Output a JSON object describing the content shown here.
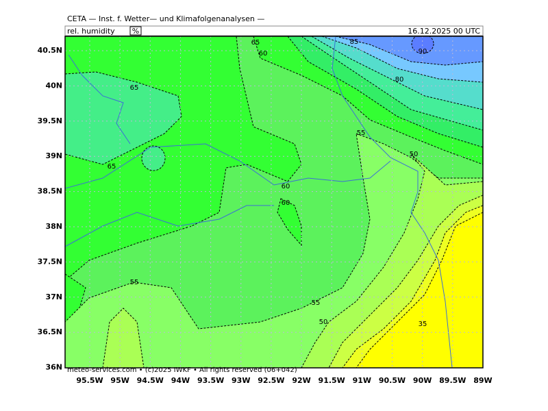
{
  "header": {
    "title": "CETA — Inst. f. Wetter— und Klimafolgenanalysen —",
    "variable": "rel. humidity",
    "unit": "%",
    "date": "16.12.2025 00 UTC"
  },
  "map": {
    "lat_labels": [
      "40.5N",
      "40N",
      "39.5N",
      "39N",
      "38.5N",
      "38N",
      "37.5N",
      "37N",
      "36.5N",
      "36N"
    ],
    "lon_labels": [
      "95.5W",
      "95W",
      "94.5W",
      "94W",
      "93.5W",
      "93W",
      "92.5W",
      "92W",
      "91.5W",
      "91W",
      "90.5W",
      "90W",
      "89.5W",
      "89W"
    ],
    "contour_labels": [
      "65",
      "60",
      "85",
      "90",
      "80",
      "65",
      "55",
      "50",
      "65",
      "60",
      "60",
      "55",
      "55",
      "50",
      "35"
    ]
  },
  "footer": {
    "text": "meteo-services.com • (c)2025 IWKF • All rights reserved (06+042)"
  }
}
